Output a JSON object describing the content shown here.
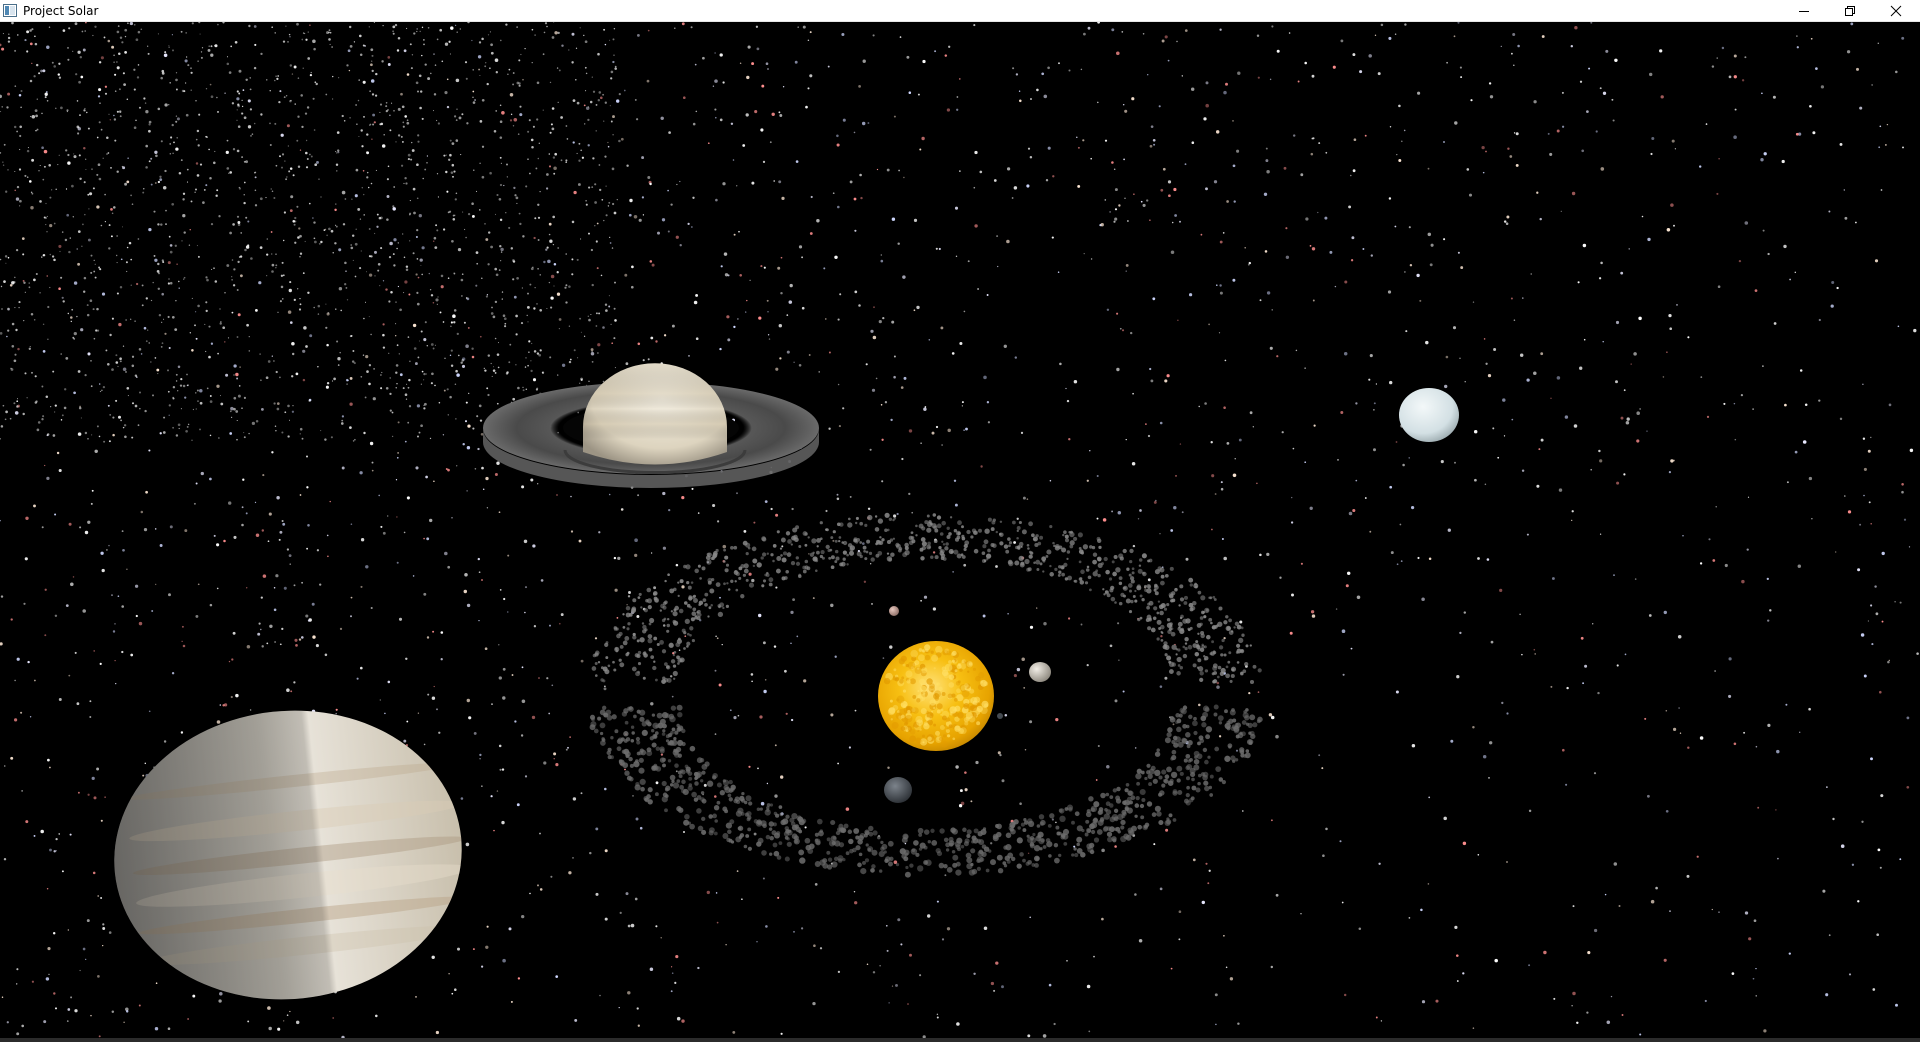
{
  "window": {
    "title": "Project Solar",
    "icon": "app-window-icon",
    "controls": [
      "minimize-icon",
      "restore-icon",
      "close-icon"
    ]
  },
  "scene": {
    "background_color": "#000000",
    "bodies": [
      {
        "name": "sun",
        "color": "#f5b800"
      },
      {
        "name": "saturn",
        "color": "#e9e3d3"
      },
      {
        "name": "jupiter",
        "color": "#dcd6c8"
      },
      {
        "name": "uranus",
        "color": "#dfe8ec"
      },
      {
        "name": "moon-right",
        "color": "#d8d3c8"
      },
      {
        "name": "moon-top",
        "color": "#c9a9a0"
      },
      {
        "name": "moon-bottom",
        "color": "#5a5f66"
      }
    ]
  }
}
